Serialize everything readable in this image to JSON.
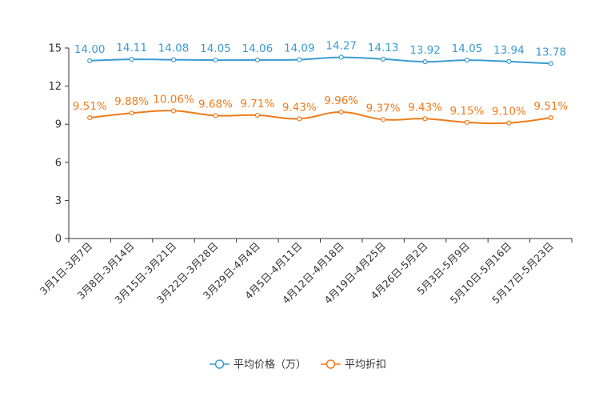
{
  "chart_data": {
    "type": "line",
    "title": "",
    "xlabel": "",
    "ylabel": "",
    "ylim": [
      0,
      15
    ],
    "yticks": [
      0,
      3,
      6,
      9,
      12,
      15
    ],
    "grid": false,
    "legend_position": "bottom-center",
    "categories": [
      "3月1日-3月7日",
      "3月8日-3月14日",
      "3月15日-3月21日",
      "3月22日-3月28日",
      "3月29日-4月4日",
      "4月5日-4月11日",
      "4月12日-4月18日",
      "4月19日-4月25日",
      "4月26日-5月2日",
      "5月3日-5月9日",
      "5月10日-5月16日",
      "5月17日-5月23日"
    ],
    "series": [
      {
        "name": "平均价格（万）",
        "color": "#3a9bd2",
        "values": [
          14.0,
          14.11,
          14.08,
          14.05,
          14.06,
          14.09,
          14.27,
          14.13,
          13.92,
          14.05,
          13.94,
          13.78
        ],
        "labels": [
          "14.00",
          "14.11",
          "14.08",
          "14.05",
          "14.06",
          "14.09",
          "14.27",
          "14.13",
          "13.92",
          "14.05",
          "13.94",
          "13.78"
        ]
      },
      {
        "name": "平均折扣",
        "color": "#f07b1a",
        "values": [
          9.51,
          9.88,
          10.06,
          9.68,
          9.71,
          9.43,
          9.96,
          9.37,
          9.43,
          9.15,
          9.1,
          9.51
        ],
        "labels": [
          "9.51%",
          "9.88%",
          "10.06%",
          "9.68%",
          "9.71%",
          "9.43%",
          "9.96%",
          "9.37%",
          "9.43%",
          "9.15%",
          "9.10%",
          "9.51%"
        ]
      }
    ]
  }
}
